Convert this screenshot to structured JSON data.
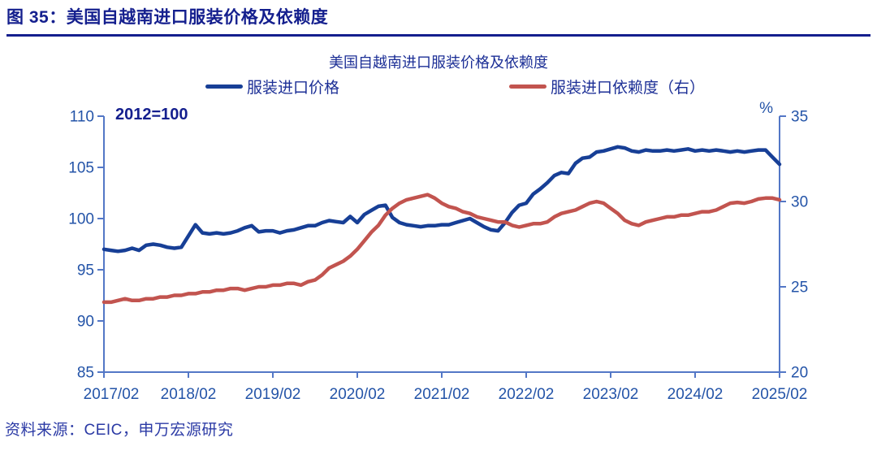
{
  "figure": {
    "caption": "图 35：美国自越南进口服装价格及依赖度",
    "source": "资料来源：CEIC，申万宏源研究"
  },
  "chart_data": {
    "type": "line",
    "title": "美国自越南进口服装价格及依赖度",
    "left_axis_note": "2012=100",
    "right_axis_unit": "%",
    "x_tick_labels": [
      "2017/02",
      "2018/02",
      "2019/02",
      "2020/02",
      "2021/02",
      "2022/02",
      "2023/02",
      "2024/02",
      "2025/02"
    ],
    "x_months_total": 97,
    "left_axis": {
      "min": 85,
      "max": 110,
      "ticks": [
        110,
        105,
        100,
        95,
        90,
        85
      ]
    },
    "right_axis": {
      "min": 20,
      "max": 35,
      "ticks": [
        35,
        30,
        25,
        20
      ]
    },
    "legend_position": "top",
    "grid": false,
    "colors": {
      "price_line": "#173f96",
      "dependency_line": "#c2544f",
      "axis_line": "#5377c6",
      "axis_text": "#2454a8",
      "title_navy": "#141f8e"
    },
    "series": [
      {
        "name": "服装进口价格",
        "axis": "left",
        "color": "#173f96",
        "start": "2017/02",
        "values": [
          97.0,
          96.9,
          96.8,
          96.9,
          97.1,
          96.9,
          97.4,
          97.5,
          97.4,
          97.2,
          97.1,
          97.2,
          98.3,
          99.4,
          98.6,
          98.5,
          98.6,
          98.5,
          98.6,
          98.8,
          99.1,
          99.3,
          98.7,
          98.8,
          98.8,
          98.6,
          98.8,
          98.9,
          99.1,
          99.3,
          99.3,
          99.6,
          99.8,
          99.7,
          99.6,
          100.2,
          99.6,
          100.4,
          100.8,
          101.2,
          101.3,
          100.1,
          99.6,
          99.4,
          99.3,
          99.2,
          99.3,
          99.3,
          99.4,
          99.4,
          99.6,
          99.8,
          100.0,
          99.6,
          99.2,
          98.9,
          98.8,
          99.6,
          100.6,
          101.3,
          101.5,
          102.4,
          102.9,
          103.5,
          104.2,
          104.5,
          104.4,
          105.4,
          105.9,
          106.0,
          106.5,
          106.6,
          106.8,
          107.0,
          106.9,
          106.6,
          106.5,
          106.7,
          106.6,
          106.6,
          106.7,
          106.6,
          106.7,
          106.8,
          106.6,
          106.7,
          106.6,
          106.7,
          106.6,
          106.5,
          106.6,
          106.5,
          106.6,
          106.7,
          106.7,
          106.0,
          105.3
        ]
      },
      {
        "name": "服装进口依赖度（右）",
        "axis": "right",
        "color": "#c2544f",
        "start": "2017/02",
        "values": [
          24.1,
          24.1,
          24.2,
          24.3,
          24.2,
          24.2,
          24.3,
          24.3,
          24.4,
          24.4,
          24.5,
          24.5,
          24.6,
          24.6,
          24.7,
          24.7,
          24.8,
          24.8,
          24.9,
          24.9,
          24.8,
          24.9,
          25.0,
          25.0,
          25.1,
          25.1,
          25.2,
          25.2,
          25.1,
          25.3,
          25.4,
          25.7,
          26.1,
          26.3,
          26.5,
          26.8,
          27.2,
          27.7,
          28.2,
          28.6,
          29.2,
          29.6,
          29.9,
          30.1,
          30.2,
          30.3,
          30.4,
          30.2,
          29.9,
          29.7,
          29.6,
          29.4,
          29.3,
          29.1,
          29.0,
          28.9,
          28.8,
          28.8,
          28.6,
          28.5,
          28.6,
          28.7,
          28.7,
          28.8,
          29.1,
          29.3,
          29.4,
          29.5,
          29.7,
          29.9,
          30.0,
          29.9,
          29.6,
          29.3,
          28.9,
          28.7,
          28.6,
          28.8,
          28.9,
          29.0,
          29.1,
          29.1,
          29.2,
          29.2,
          29.3,
          29.4,
          29.4,
          29.5,
          29.7,
          29.9,
          29.95,
          29.9,
          30.0,
          30.15,
          30.2,
          30.2,
          30.1
        ]
      }
    ]
  }
}
